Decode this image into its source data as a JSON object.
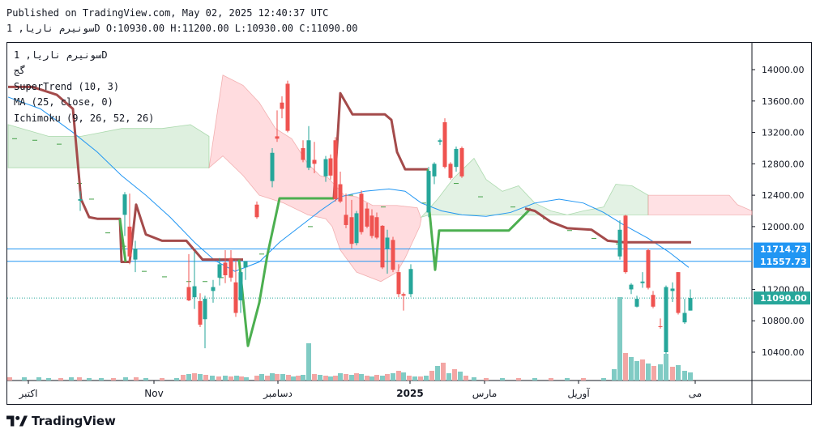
{
  "header": {
    "published_line": "Published on TradingView.com, May 02, 2025 12:40:37 UTC",
    "ohlc_line": "سونیرم ناریا, 1D O:10930.00 H:11200.00 L:10930.00 C:11090.00"
  },
  "legend": {
    "symbol": "سونیرم ناریا, 1D",
    "exchange": "گج",
    "supertrend": "SuperTrend (10, 3)",
    "ma": "MA (25, close, 0)",
    "ichimoku": "Ichimoku (9, 26, 52, 26)"
  },
  "brand": {
    "name": "TradingView",
    "logo_icon": "tradingview-logo-icon"
  },
  "colors": {
    "up": "#26a69a",
    "down": "#ef5350",
    "supertrend_up": "#4caf50",
    "supertrend_down": "#a44b4b",
    "ma": "#2196f3",
    "cloud_green": "#c8e6c9",
    "cloud_red": "#ffcdd2",
    "level_line": "#2196f3"
  },
  "chart_data": {
    "type": "candlestick",
    "ylim": [
      10100,
      14350
    ],
    "y_ticks": [
      "14000.00",
      "13600.00",
      "13200.00",
      "12800.00",
      "12400.00",
      "12000.00",
      "11200.00",
      "10800.00",
      "10400.00"
    ],
    "x_labels": [
      "اکتبر",
      "Nov",
      "دسامبر",
      "2025",
      "مارس",
      "آوریل",
      "می"
    ],
    "price_labels": [
      {
        "value": 11714.73,
        "text": "11714.73",
        "color": "#2196f3"
      },
      {
        "value": 11557.73,
        "text": "11557.73",
        "color": "#2196f3"
      },
      {
        "value": 11090.0,
        "text": "11090.00",
        "color": "#26a69a"
      }
    ],
    "candles": [
      {
        "x": 99,
        "o": 12330,
        "h": 12450,
        "l": 12200,
        "c": 12350
      },
      {
        "x": 154,
        "o": 12150,
        "h": 12440,
        "l": 11880,
        "c": 12410
      },
      {
        "x": 160,
        "o": 12000,
        "h": 12420,
        "l": 11520,
        "c": 11620
      },
      {
        "x": 167,
        "o": 11580,
        "h": 11820,
        "l": 11420,
        "c": 11720
      },
      {
        "x": 233,
        "o": 11230,
        "h": 11650,
        "l": 11050,
        "c": 11060
      },
      {
        "x": 240,
        "o": 11100,
        "h": 11680,
        "l": 10950,
        "c": 11240
      },
      {
        "x": 247,
        "o": 11050,
        "h": 11150,
        "l": 10720,
        "c": 10750
      },
      {
        "x": 253,
        "o": 10820,
        "h": 11120,
        "l": 10450,
        "c": 11080
      },
      {
        "x": 263,
        "o": 11180,
        "h": 11320,
        "l": 11030,
        "c": 11230
      },
      {
        "x": 271,
        "o": 11350,
        "h": 11600,
        "l": 11250,
        "c": 11520
      },
      {
        "x": 278,
        "o": 11540,
        "h": 11700,
        "l": 11280,
        "c": 11380
      },
      {
        "x": 285,
        "o": 11600,
        "h": 11700,
        "l": 11300,
        "c": 11350
      },
      {
        "x": 291,
        "o": 11290,
        "h": 11580,
        "l": 10850,
        "c": 10900
      },
      {
        "x": 297,
        "o": 11060,
        "h": 11450,
        "l": 10900,
        "c": 11420
      },
      {
        "x": 303,
        "o": 11480,
        "h": 11560,
        "l": 11320,
        "c": 11560
      },
      {
        "x": 317,
        "o": 12280,
        "h": 12320,
        "l": 12100,
        "c": 12120
      },
      {
        "x": 336,
        "o": 12580,
        "h": 13000,
        "l": 12500,
        "c": 12940
      },
      {
        "x": 342,
        "o": 13150,
        "h": 13480,
        "l": 13080,
        "c": 13120
      },
      {
        "x": 348,
        "o": 13580,
        "h": 13660,
        "l": 13380,
        "c": 13500
      },
      {
        "x": 355,
        "o": 13820,
        "h": 13860,
        "l": 13200,
        "c": 13220
      },
      {
        "x": 374,
        "o": 13000,
        "h": 13100,
        "l": 12820,
        "c": 12850
      },
      {
        "x": 381,
        "o": 12750,
        "h": 13280,
        "l": 12720,
        "c": 13100
      },
      {
        "x": 388,
        "o": 12850,
        "h": 13080,
        "l": 12680,
        "c": 12800
      },
      {
        "x": 402,
        "o": 12640,
        "h": 12900,
        "l": 12570,
        "c": 12860
      },
      {
        "x": 408,
        "o": 12870,
        "h": 12920,
        "l": 12600,
        "c": 12650
      },
      {
        "x": 414,
        "o": 13100,
        "h": 13140,
        "l": 12320,
        "c": 12350
      },
      {
        "x": 420,
        "o": 12540,
        "h": 12700,
        "l": 12300,
        "c": 12320
      },
      {
        "x": 427,
        "o": 12150,
        "h": 12420,
        "l": 11980,
        "c": 12020
      },
      {
        "x": 434,
        "o": 12120,
        "h": 12340,
        "l": 11720,
        "c": 11780
      },
      {
        "x": 440,
        "o": 11790,
        "h": 12200,
        "l": 11760,
        "c": 12170
      },
      {
        "x": 446,
        "o": 12420,
        "h": 12460,
        "l": 11900,
        "c": 11930
      },
      {
        "x": 453,
        "o": 12230,
        "h": 12300,
        "l": 11980,
        "c": 12000
      },
      {
        "x": 459,
        "o": 12140,
        "h": 12220,
        "l": 11850,
        "c": 11880
      },
      {
        "x": 465,
        "o": 12120,
        "h": 12180,
        "l": 11840,
        "c": 11860
      },
      {
        "x": 472,
        "o": 12010,
        "h": 12020,
        "l": 11460,
        "c": 11480
      },
      {
        "x": 478,
        "o": 11720,
        "h": 11960,
        "l": 11400,
        "c": 11860
      },
      {
        "x": 485,
        "o": 11830,
        "h": 11870,
        "l": 11420,
        "c": 11450
      },
      {
        "x": 492,
        "o": 11420,
        "h": 11520,
        "l": 11100,
        "c": 11140
      },
      {
        "x": 498,
        "o": 11140,
        "h": 11160,
        "l": 10930,
        "c": 11120
      },
      {
        "x": 507,
        "o": 11140,
        "h": 11520,
        "l": 11100,
        "c": 11460
      },
      {
        "x": 529,
        "o": 12180,
        "h": 12760,
        "l": 12120,
        "c": 12710
      },
      {
        "x": 536,
        "o": 12640,
        "h": 12820,
        "l": 12540,
        "c": 12800
      },
      {
        "x": 543,
        "o": 13080,
        "h": 13120,
        "l": 13040,
        "c": 13100
      },
      {
        "x": 549,
        "o": 13330,
        "h": 13380,
        "l": 12740,
        "c": 12760
      },
      {
        "x": 556,
        "o": 12800,
        "h": 12820,
        "l": 12600,
        "c": 12620
      },
      {
        "x": 563,
        "o": 12760,
        "h": 13020,
        "l": 12700,
        "c": 12990
      },
      {
        "x": 570,
        "o": 13000,
        "h": 13020,
        "l": 12620,
        "c": 12640
      },
      {
        "x": 765,
        "o": 11620,
        "h": 12080,
        "l": 11580,
        "c": 11960
      },
      {
        "x": 772,
        "o": 12140,
        "h": 12150,
        "l": 11400,
        "c": 11420
      },
      {
        "x": 779,
        "o": 11200,
        "h": 11280,
        "l": 11140,
        "c": 11260
      },
      {
        "x": 786,
        "o": 10980,
        "h": 11120,
        "l": 10970,
        "c": 11080
      },
      {
        "x": 793,
        "o": 11280,
        "h": 11420,
        "l": 11220,
        "c": 11300
      },
      {
        "x": 800,
        "o": 11700,
        "h": 11720,
        "l": 11200,
        "c": 11220
      },
      {
        "x": 806,
        "o": 11130,
        "h": 11180,
        "l": 10960,
        "c": 10980
      },
      {
        "x": 815,
        "o": 10730,
        "h": 10830,
        "l": 10700,
        "c": 10720
      },
      {
        "x": 822,
        "o": 10400,
        "h": 11250,
        "l": 10380,
        "c": 11230
      },
      {
        "x": 830,
        "o": 11180,
        "h": 11290,
        "l": 11040,
        "c": 11210
      },
      {
        "x": 837,
        "o": 11420,
        "h": 11420,
        "l": 10880,
        "c": 10900
      },
      {
        "x": 845,
        "o": 10780,
        "h": 11080,
        "l": 10760,
        "c": 10900
      },
      {
        "x": 852,
        "o": 10930,
        "h": 11200,
        "l": 10930,
        "c": 11090
      }
    ],
    "volumes": [
      [
        12,
        4,
        "d"
      ],
      [
        30,
        4,
        "u"
      ],
      [
        48,
        4,
        "u"
      ],
      [
        60,
        3,
        "u"
      ],
      [
        75,
        3,
        "d"
      ],
      [
        88,
        4,
        "u"
      ],
      [
        98,
        4,
        "d"
      ],
      [
        110,
        3,
        "u"
      ],
      [
        125,
        3,
        "u"
      ],
      [
        140,
        3,
        "d"
      ],
      [
        155,
        4,
        "u"
      ],
      [
        168,
        4,
        "d"
      ],
      [
        180,
        3,
        "u"
      ],
      [
        200,
        3,
        "d"
      ],
      [
        218,
        3,
        "u"
      ],
      [
        226,
        7,
        "d"
      ],
      [
        233,
        8,
        "u"
      ],
      [
        240,
        9,
        "d"
      ],
      [
        247,
        8,
        "u"
      ],
      [
        254,
        7,
        "d"
      ],
      [
        262,
        6,
        "u"
      ],
      [
        270,
        5,
        "d"
      ],
      [
        278,
        6,
        "u"
      ],
      [
        285,
        5,
        "d"
      ],
      [
        292,
        6,
        "u"
      ],
      [
        298,
        5,
        "d"
      ],
      [
        304,
        4,
        "u"
      ],
      [
        317,
        6,
        "d"
      ],
      [
        323,
        8,
        "u"
      ],
      [
        330,
        6,
        "d"
      ],
      [
        336,
        9,
        "u"
      ],
      [
        342,
        8,
        "d"
      ],
      [
        349,
        8,
        "u"
      ],
      [
        356,
        7,
        "d"
      ],
      [
        362,
        5,
        "u"
      ],
      [
        368,
        6,
        "d"
      ],
      [
        374,
        7,
        "u"
      ],
      [
        381,
        46,
        "u"
      ],
      [
        388,
        8,
        "d"
      ],
      [
        395,
        7,
        "u"
      ],
      [
        402,
        6,
        "d"
      ],
      [
        408,
        5,
        "u"
      ],
      [
        414,
        6,
        "d"
      ],
      [
        420,
        9,
        "u"
      ],
      [
        427,
        8,
        "d"
      ],
      [
        434,
        7,
        "u"
      ],
      [
        440,
        9,
        "d"
      ],
      [
        446,
        8,
        "u"
      ],
      [
        453,
        6,
        "d"
      ],
      [
        459,
        5,
        "u"
      ],
      [
        465,
        7,
        "d"
      ],
      [
        472,
        6,
        "u"
      ],
      [
        478,
        8,
        "d"
      ],
      [
        485,
        9,
        "u"
      ],
      [
        492,
        12,
        "d"
      ],
      [
        498,
        10,
        "u"
      ],
      [
        505,
        6,
        "d"
      ],
      [
        512,
        5,
        "u"
      ],
      [
        519,
        5,
        "d"
      ],
      [
        526,
        6,
        "u"
      ],
      [
        533,
        12,
        "d"
      ],
      [
        540,
        18,
        "u"
      ],
      [
        547,
        22,
        "d"
      ],
      [
        554,
        9,
        "u"
      ],
      [
        561,
        14,
        "d"
      ],
      [
        568,
        11,
        "u"
      ],
      [
        575,
        6,
        "d"
      ],
      [
        585,
        4,
        "u"
      ],
      [
        600,
        3,
        "d"
      ],
      [
        620,
        3,
        "u"
      ],
      [
        640,
        3,
        "d"
      ],
      [
        660,
        3,
        "u"
      ],
      [
        680,
        3,
        "d"
      ],
      [
        700,
        3,
        "u"
      ],
      [
        720,
        3,
        "d"
      ],
      [
        745,
        3,
        "u"
      ],
      [
        758,
        14,
        "u"
      ],
      [
        765,
        103,
        "u"
      ],
      [
        772,
        34,
        "d"
      ],
      [
        779,
        29,
        "u"
      ],
      [
        786,
        24,
        "u"
      ],
      [
        793,
        26,
        "d"
      ],
      [
        800,
        21,
        "u"
      ],
      [
        807,
        18,
        "d"
      ],
      [
        815,
        20,
        "u"
      ],
      [
        822,
        33,
        "u"
      ],
      [
        830,
        17,
        "d"
      ],
      [
        837,
        19,
        "u"
      ],
      [
        845,
        12,
        "u"
      ],
      [
        852,
        10,
        "u"
      ]
    ]
  }
}
